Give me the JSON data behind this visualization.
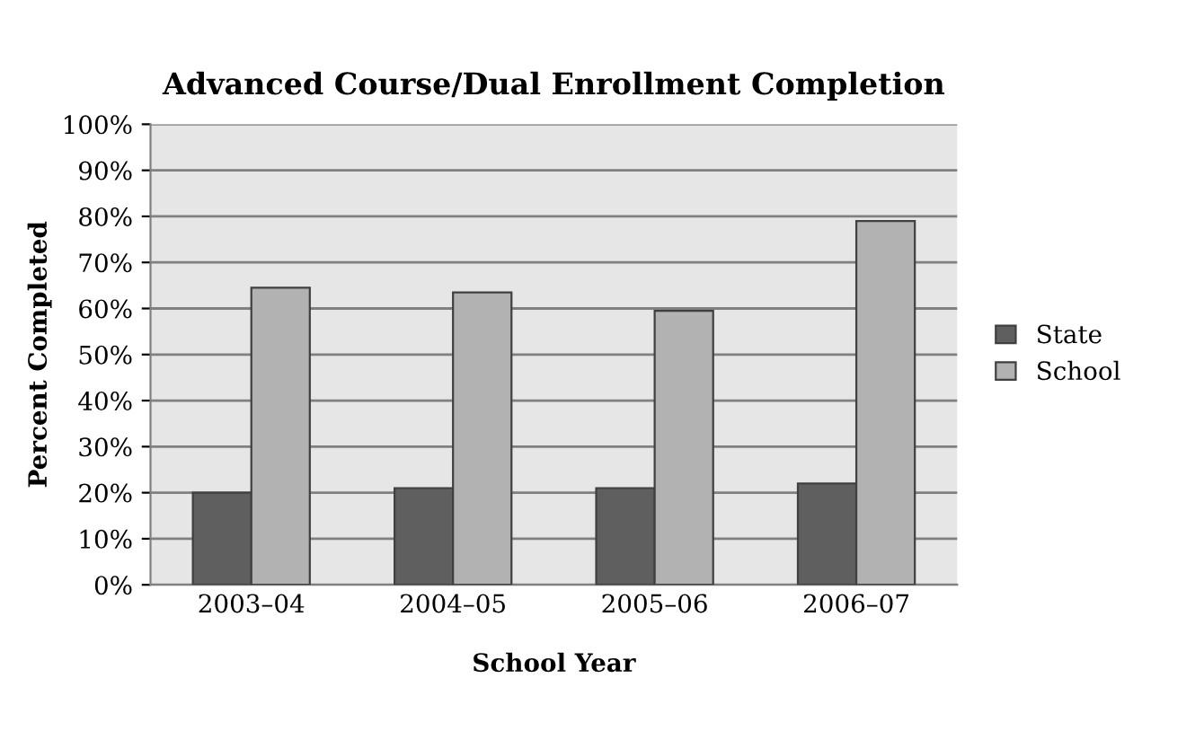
{
  "chart_data": {
    "type": "bar",
    "title": "Advanced Course/Dual Enrollment Completion",
    "xlabel": "School Year",
    "ylabel": "Percent Completed",
    "categories": [
      "2003–04",
      "2004–05",
      "2005–06",
      "2006–07"
    ],
    "series": [
      {
        "name": "State",
        "color": "#5f5f5f",
        "values": [
          20,
          21,
          21,
          22
        ]
      },
      {
        "name": "School",
        "color": "#b2b2b2",
        "values": [
          64.5,
          63.5,
          59.5,
          79
        ]
      }
    ],
    "ylim": [
      0,
      100
    ],
    "yticks": [
      {
        "value": 0,
        "label": "0%"
      },
      {
        "value": 10,
        "label": "10%"
      },
      {
        "value": 20,
        "label": "20%"
      },
      {
        "value": 30,
        "label": "30%"
      },
      {
        "value": 40,
        "label": "40%"
      },
      {
        "value": 50,
        "label": "50%"
      },
      {
        "value": 60,
        "label": "60%"
      },
      {
        "value": 70,
        "label": "70%"
      },
      {
        "value": 80,
        "label": "80%"
      },
      {
        "value": 90,
        "label": "90%"
      },
      {
        "value": 100,
        "label": "100%"
      }
    ],
    "grid": "y",
    "legend": "right"
  }
}
